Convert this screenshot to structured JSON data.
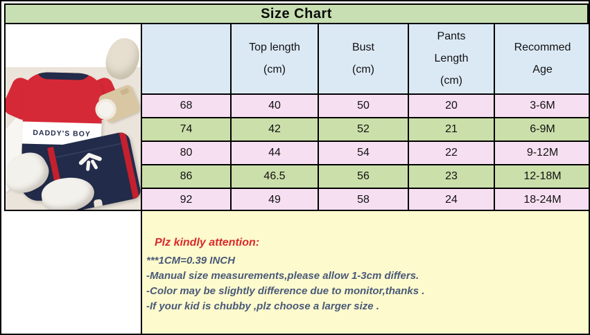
{
  "title": "Size Chart",
  "photo": {
    "romper_text": "DADDY'S BOY"
  },
  "table": {
    "corner_label": "",
    "headers": [
      {
        "lines": [
          "Top length",
          "(cm)"
        ]
      },
      {
        "lines": [
          "Bust",
          "(cm)"
        ]
      },
      {
        "lines": [
          "Pants",
          "Length",
          "(cm)"
        ]
      },
      {
        "lines": [
          "Recommed",
          "Age"
        ]
      }
    ],
    "rows": [
      {
        "size": "68",
        "top_length": "40",
        "bust": "50",
        "pants_length": "20",
        "age": "3-6M"
      },
      {
        "size": "74",
        "top_length": "42",
        "bust": "52",
        "pants_length": "21",
        "age": "6-9M"
      },
      {
        "size": "80",
        "top_length": "44",
        "bust": "54",
        "pants_length": "22",
        "age": "9-12M"
      },
      {
        "size": "86",
        "top_length": "46.5",
        "bust": "56",
        "pants_length": "23",
        "age": "12-18M"
      },
      {
        "size": "92",
        "top_length": "49",
        "bust": "58",
        "pants_length": "24",
        "age": "18-24M"
      }
    ]
  },
  "notes": {
    "heading": "Plz kindly attention:",
    "lines": [
      "***1CM=0.39 INCH",
      "-Manual size measurements,please allow 1-3cm differs.",
      "-Color may be slightly difference due to monitor,thanks .",
      "-If your kid is chubby ,plz choose a larger size ."
    ]
  },
  "colors": {
    "title_bg": "#c7dfb2",
    "header_bg": "#dbe9f5",
    "row_pink": "#f7dff2",
    "row_green": "#cbdfaa",
    "notes_bg": "#fdfacd",
    "size_text_red": "#e3323d",
    "notes_heading_red": "#d92b2b",
    "notes_text_blue": "#4a5a78",
    "romper_red": "#d62937",
    "outfit_navy": "#222b49"
  }
}
